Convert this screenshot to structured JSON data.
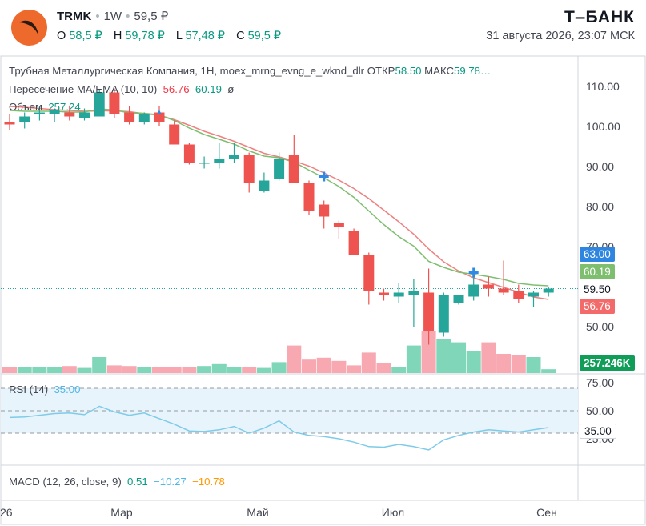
{
  "header": {
    "ticker": "TRMK",
    "timeframe": "1W",
    "last_price": "59,5 ₽",
    "ohlc": [
      {
        "k": "O",
        "v": "58,5 ₽",
        "c": "green"
      },
      {
        "k": "H",
        "v": "59,78 ₽",
        "c": "green"
      },
      {
        "k": "L",
        "v": "57,48 ₽",
        "c": "green"
      },
      {
        "k": "C",
        "v": "59,5 ₽",
        "c": "green"
      }
    ],
    "brand": "Т‒БАНК",
    "datetime": "31 августа 2026, 23:07 МСК"
  },
  "legend": {
    "title": "Трубная Металлургическая Компания, 1H, moex_mrng_evng_e_wknd_dlr",
    "open_key": "ОТКР",
    "open_val": "58.50",
    "high_key": "МАКС",
    "high_val": "59.78…",
    "ma_name": "Пересечение MA/EMA (10, 10)",
    "ma_val1": "56.76",
    "ma_val2": "60.19",
    "ma_val3": "ø",
    "vol_name": "Объем",
    "vol_val": "257.24",
    "rsi_name": "RSI (14)",
    "rsi_val": "35.00",
    "macd_name": "MACD (12, 26, close, 9)",
    "macd_v1": "0.51",
    "macd_v2": "−10.27",
    "macd_v3": "−10.78"
  },
  "price_labels": {
    "high_line": "63.00",
    "ema": "60.19",
    "last": "59.50",
    "ma": "56.76",
    "volume": "257.246K",
    "rsi": "35.00"
  },
  "colors": {
    "up": "#26a69a",
    "down": "#ef5350",
    "vol_up": "#7fd6b8",
    "vol_down": "#f7a8b0",
    "ma_line": "#f08080",
    "ema_line": "#7dbf6f",
    "rsi": "#7ecbe9",
    "marker": "#2e8ae6"
  },
  "chart_data": [
    {
      "type": "candlestick",
      "title": "Трубная Металлургическая Компания, 1H, moex_mrng_evng_e_wknd_dlr",
      "x_ticks": [
        "26",
        "Мар",
        "Май",
        "Июл",
        "Сен"
      ],
      "y_ticks": [
        110.0,
        100.0,
        90.0,
        80.0,
        70.0,
        50.0
      ],
      "ylim": [
        43,
        114
      ],
      "grid": false,
      "candles": [
        {
          "o": 101,
          "h": 103,
          "l": 99,
          "c": 100.5
        },
        {
          "o": 101,
          "h": 103.5,
          "l": 99.5,
          "c": 102.5
        },
        {
          "o": 103,
          "h": 105,
          "l": 101.5,
          "c": 103.5
        },
        {
          "o": 103,
          "h": 104.5,
          "l": 101,
          "c": 104
        },
        {
          "o": 103.5,
          "h": 105,
          "l": 101.5,
          "c": 102.5
        },
        {
          "o": 102,
          "h": 104.5,
          "l": 101.5,
          "c": 103.5
        },
        {
          "o": 102.5,
          "h": 109,
          "l": 102.5,
          "c": 108.5
        },
        {
          "o": 108.5,
          "h": 109.5,
          "l": 102,
          "c": 103
        },
        {
          "o": 103.5,
          "h": 105,
          "l": 100.5,
          "c": 101
        },
        {
          "o": 101,
          "h": 103.5,
          "l": 100.5,
          "c": 103
        },
        {
          "o": 103.5,
          "h": 105,
          "l": 100,
          "c": 101
        },
        {
          "o": 100.5,
          "h": 101.5,
          "l": 95.5,
          "c": 95.5
        },
        {
          "o": 95.5,
          "h": 96,
          "l": 90.5,
          "c": 91
        },
        {
          "o": 91,
          "h": 92.5,
          "l": 89.5,
          "c": 91
        },
        {
          "o": 91,
          "h": 96,
          "l": 89.5,
          "c": 92
        },
        {
          "o": 92,
          "h": 96,
          "l": 91,
          "c": 93
        },
        {
          "o": 93,
          "h": 93.5,
          "l": 83.5,
          "c": 86
        },
        {
          "o": 84,
          "h": 88.5,
          "l": 83.5,
          "c": 86.5
        },
        {
          "o": 87,
          "h": 93.5,
          "l": 86.5,
          "c": 92
        },
        {
          "o": 93,
          "h": 98,
          "l": 86,
          "c": 86
        },
        {
          "o": 86,
          "h": 86.5,
          "l": 78,
          "c": 79
        },
        {
          "o": 80.5,
          "h": 81.5,
          "l": 74.5,
          "c": 77.5
        },
        {
          "o": 76,
          "h": 76.5,
          "l": 72,
          "c": 75
        },
        {
          "o": 74,
          "h": 74.5,
          "l": 68,
          "c": 68
        },
        {
          "o": 68,
          "h": 68.5,
          "l": 55.5,
          "c": 59
        },
        {
          "o": 58.5,
          "h": 59.5,
          "l": 56.5,
          "c": 58
        },
        {
          "o": 57.5,
          "h": 61,
          "l": 56,
          "c": 58.5
        },
        {
          "o": 58,
          "h": 62,
          "l": 50,
          "c": 59
        },
        {
          "o": 58.5,
          "h": 64.5,
          "l": 45.5,
          "c": 49
        },
        {
          "o": 48.5,
          "h": 58.5,
          "l": 47.5,
          "c": 58
        },
        {
          "o": 56,
          "h": 58,
          "l": 55.5,
          "c": 58
        },
        {
          "o": 57.5,
          "h": 63,
          "l": 56.5,
          "c": 60.5
        },
        {
          "o": 60.5,
          "h": 62.5,
          "l": 57.5,
          "c": 59.5
        },
        {
          "o": 59.5,
          "h": 66.5,
          "l": 58,
          "c": 58.5
        },
        {
          "o": 59,
          "h": 60.5,
          "l": 56,
          "c": 57
        },
        {
          "o": 57.5,
          "h": 59,
          "l": 55,
          "c": 58.5
        },
        {
          "o": 58.5,
          "h": 59.8,
          "l": 57.5,
          "c": 59.5
        }
      ],
      "ma": [
        105,
        104.8,
        104.5,
        104.2,
        104,
        103.8,
        103.9,
        103.9,
        103.7,
        103.2,
        102.8,
        101.7,
        100.3,
        98.8,
        97.6,
        96.3,
        94.8,
        93.3,
        92.4,
        91.4,
        90.1,
        88.4,
        86.6,
        84.5,
        82,
        79.1,
        76.2,
        73.1,
        69.4,
        66.2,
        63.9,
        62.2,
        61,
        59.8,
        58.6,
        57.4,
        56.8
      ],
      "ema": [
        104,
        103.8,
        103.8,
        103.8,
        103.6,
        103.6,
        104.4,
        104.1,
        103.4,
        103.3,
        102.9,
        101.5,
        99.6,
        98,
        96.8,
        95.6,
        93.9,
        92.6,
        92.2,
        91.1,
        89.1,
        87.2,
        85,
        82.3,
        78.9,
        75.5,
        72.5,
        70.1,
        66.3,
        64.8,
        63.6,
        63.1,
        62.5,
        61.8,
        60.8,
        60.4,
        60.2
      ],
      "volume": [
        1,
        1,
        1,
        0.9,
        1.1,
        0.8,
        2.5,
        1.2,
        1.1,
        1,
        0.9,
        0.9,
        1,
        1.1,
        1.4,
        1,
        0.9,
        0.8,
        1.7,
        4.3,
        2.1,
        2.4,
        1.9,
        1.2,
        3.2,
        1.6,
        1,
        4.3,
        6.6,
        5.3,
        4.8,
        3.4,
        4.8,
        3,
        2.8,
        2.5,
        0.6
      ],
      "markers": [
        {
          "index": 21,
          "value": 87.5
        },
        {
          "index": 31,
          "value": 63.5
        }
      ]
    },
    {
      "type": "line",
      "title": "RSI (14)",
      "y_ticks": [
        75.0,
        50.0,
        25.0
      ],
      "ylim": [
        15,
        78
      ],
      "values": [
        44,
        44.5,
        46,
        47.5,
        48,
        46.5,
        54,
        49,
        46,
        48,
        43,
        38,
        32,
        31.5,
        33,
        36,
        30,
        34.5,
        41,
        31,
        28,
        27,
        25,
        22,
        18,
        17.5,
        20,
        18,
        15,
        24,
        28,
        31,
        33,
        32,
        31,
        33,
        35
      ]
    },
    {
      "type": "line",
      "title": "MACD (12, 26, close, 9)",
      "series": [
        {
          "name": "MACD",
          "values": [
            0.51
          ]
        },
        {
          "name": "Signal",
          "values": [
            -10.27
          ]
        },
        {
          "name": "Histogram",
          "values": [
            -10.78
          ]
        }
      ]
    }
  ]
}
